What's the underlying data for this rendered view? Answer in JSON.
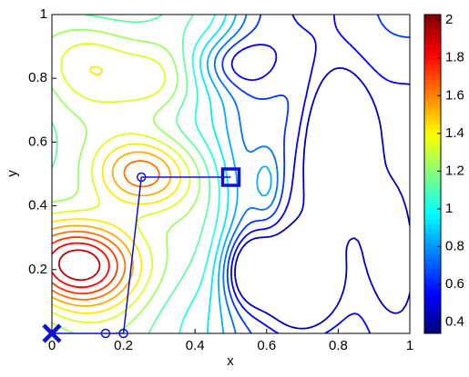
{
  "chart_data": {
    "type": "contour",
    "xlabel": "x",
    "ylabel": "y",
    "xlim": [
      0,
      1
    ],
    "ylim": [
      0,
      1
    ],
    "xticks": [
      0,
      0.2,
      0.4,
      0.6,
      0.8,
      1
    ],
    "yticks": [
      0.2,
      0.4,
      0.6,
      0.8,
      1
    ],
    "colorbar": {
      "lim": [
        0.34,
        2.03
      ],
      "ticks": [
        0.4,
        0.6,
        0.8,
        1,
        1.2,
        1.4,
        1.6,
        1.8,
        2
      ],
      "colormap": "jet"
    },
    "path": {
      "color": "#1010d0",
      "x": [
        0.5,
        0.25,
        0.2,
        0.15,
        0
      ],
      "y": [
        0.49,
        0.49,
        0,
        0,
        0
      ]
    }
  }
}
